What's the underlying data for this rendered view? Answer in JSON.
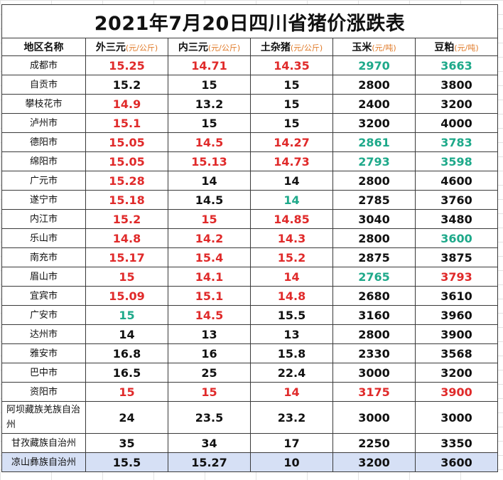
{
  "title": "2021年7月20日四川省猪价涨跌表",
  "colors": {
    "up": "#e02a2a",
    "down": "#1ea98a",
    "flat": "#111111",
    "unit": "#e07a28",
    "last_row_bg": "#d6e0f5"
  },
  "headers": [
    {
      "label": "地区名称",
      "unit": ""
    },
    {
      "label": "外三元",
      "unit": "(元/公斤)"
    },
    {
      "label": "内三元",
      "unit": "(元/公斤)"
    },
    {
      "label": "土杂猪",
      "unit": "(元/公斤)"
    },
    {
      "label": "玉米",
      "unit": "(元/吨)"
    },
    {
      "label": "豆粕",
      "unit": "(元/吨)"
    }
  ],
  "rows": [
    {
      "region": "成都市",
      "cells": [
        {
          "v": "15.25",
          "t": "up"
        },
        {
          "v": "14.71",
          "t": "up"
        },
        {
          "v": "14.35",
          "t": "up"
        },
        {
          "v": "2970",
          "t": "down"
        },
        {
          "v": "3663",
          "t": "down"
        }
      ]
    },
    {
      "region": "自贡市",
      "cells": [
        {
          "v": "15.2",
          "t": "flat"
        },
        {
          "v": "15",
          "t": "flat"
        },
        {
          "v": "15",
          "t": "flat"
        },
        {
          "v": "2800",
          "t": "flat"
        },
        {
          "v": "3800",
          "t": "flat"
        }
      ]
    },
    {
      "region": "攀枝花市",
      "cells": [
        {
          "v": "14.9",
          "t": "up"
        },
        {
          "v": "13.2",
          "t": "flat"
        },
        {
          "v": "15",
          "t": "flat"
        },
        {
          "v": "2400",
          "t": "flat"
        },
        {
          "v": "3200",
          "t": "flat"
        }
      ]
    },
    {
      "region": "泸州市",
      "cells": [
        {
          "v": "15.1",
          "t": "up"
        },
        {
          "v": "15",
          "t": "flat"
        },
        {
          "v": "15",
          "t": "flat"
        },
        {
          "v": "3200",
          "t": "flat"
        },
        {
          "v": "4000",
          "t": "flat"
        }
      ]
    },
    {
      "region": "德阳市",
      "cells": [
        {
          "v": "15.05",
          "t": "up"
        },
        {
          "v": "14.5",
          "t": "up"
        },
        {
          "v": "14.27",
          "t": "up"
        },
        {
          "v": "2861",
          "t": "down"
        },
        {
          "v": "3783",
          "t": "down"
        }
      ]
    },
    {
      "region": "绵阳市",
      "cells": [
        {
          "v": "15.05",
          "t": "up"
        },
        {
          "v": "15.13",
          "t": "up"
        },
        {
          "v": "14.73",
          "t": "up"
        },
        {
          "v": "2793",
          "t": "down"
        },
        {
          "v": "3598",
          "t": "down"
        }
      ]
    },
    {
      "region": "广元市",
      "cells": [
        {
          "v": "15.28",
          "t": "up"
        },
        {
          "v": "14",
          "t": "flat"
        },
        {
          "v": "14",
          "t": "flat"
        },
        {
          "v": "2800",
          "t": "flat"
        },
        {
          "v": "4600",
          "t": "flat"
        }
      ]
    },
    {
      "region": "遂宁市",
      "cells": [
        {
          "v": "15.18",
          "t": "up"
        },
        {
          "v": "14.5",
          "t": "flat"
        },
        {
          "v": "14",
          "t": "down"
        },
        {
          "v": "2785",
          "t": "flat"
        },
        {
          "v": "3760",
          "t": "flat"
        }
      ]
    },
    {
      "region": "内江市",
      "cells": [
        {
          "v": "15.2",
          "t": "up"
        },
        {
          "v": "15",
          "t": "up"
        },
        {
          "v": "14.85",
          "t": "up"
        },
        {
          "v": "3040",
          "t": "flat"
        },
        {
          "v": "3480",
          "t": "flat"
        }
      ]
    },
    {
      "region": "乐山市",
      "cells": [
        {
          "v": "14.8",
          "t": "up"
        },
        {
          "v": "14.2",
          "t": "up"
        },
        {
          "v": "14.3",
          "t": "up"
        },
        {
          "v": "2800",
          "t": "flat"
        },
        {
          "v": "3600",
          "t": "down"
        }
      ]
    },
    {
      "region": "南充市",
      "cells": [
        {
          "v": "15.17",
          "t": "up"
        },
        {
          "v": "15.4",
          "t": "up"
        },
        {
          "v": "15.2",
          "t": "up"
        },
        {
          "v": "2875",
          "t": "flat"
        },
        {
          "v": "3875",
          "t": "flat"
        }
      ]
    },
    {
      "region": "眉山市",
      "cells": [
        {
          "v": "15",
          "t": "up"
        },
        {
          "v": "14.1",
          "t": "up"
        },
        {
          "v": "14",
          "t": "up"
        },
        {
          "v": "2765",
          "t": "down"
        },
        {
          "v": "3793",
          "t": "up"
        }
      ]
    },
    {
      "region": "宜宾市",
      "cells": [
        {
          "v": "15.09",
          "t": "up"
        },
        {
          "v": "15.1",
          "t": "up"
        },
        {
          "v": "14.8",
          "t": "up"
        },
        {
          "v": "2680",
          "t": "flat"
        },
        {
          "v": "3610",
          "t": "flat"
        }
      ]
    },
    {
      "region": "广安市",
      "cells": [
        {
          "v": "15",
          "t": "down"
        },
        {
          "v": "14.5",
          "t": "up"
        },
        {
          "v": "15.5",
          "t": "flat"
        },
        {
          "v": "3160",
          "t": "flat"
        },
        {
          "v": "3960",
          "t": "flat"
        }
      ]
    },
    {
      "region": "达州市",
      "cells": [
        {
          "v": "14",
          "t": "flat"
        },
        {
          "v": "13",
          "t": "flat"
        },
        {
          "v": "13",
          "t": "flat"
        },
        {
          "v": "2800",
          "t": "flat"
        },
        {
          "v": "3900",
          "t": "flat"
        }
      ]
    },
    {
      "region": "雅安市",
      "cells": [
        {
          "v": "16.8",
          "t": "flat"
        },
        {
          "v": "16",
          "t": "flat"
        },
        {
          "v": "15.8",
          "t": "flat"
        },
        {
          "v": "2330",
          "t": "flat"
        },
        {
          "v": "3568",
          "t": "flat"
        }
      ]
    },
    {
      "region": "巴中市",
      "cells": [
        {
          "v": "16.5",
          "t": "flat"
        },
        {
          "v": "25",
          "t": "flat"
        },
        {
          "v": "22.4",
          "t": "flat"
        },
        {
          "v": "3000",
          "t": "flat"
        },
        {
          "v": "3200",
          "t": "flat"
        }
      ]
    },
    {
      "region": "资阳市",
      "cells": [
        {
          "v": "15",
          "t": "up"
        },
        {
          "v": "15",
          "t": "up"
        },
        {
          "v": "14",
          "t": "up"
        },
        {
          "v": "3175",
          "t": "up"
        },
        {
          "v": "3900",
          "t": "up"
        }
      ]
    },
    {
      "region": "阿坝藏族羌族自治州",
      "cells": [
        {
          "v": "24",
          "t": "flat"
        },
        {
          "v": "23.5",
          "t": "flat"
        },
        {
          "v": "23.2",
          "t": "flat"
        },
        {
          "v": "3000",
          "t": "flat"
        },
        {
          "v": "3000",
          "t": "flat"
        }
      ]
    },
    {
      "region": "甘孜藏族自治州",
      "cells": [
        {
          "v": "35",
          "t": "flat"
        },
        {
          "v": "34",
          "t": "flat"
        },
        {
          "v": "17",
          "t": "flat"
        },
        {
          "v": "2250",
          "t": "flat"
        },
        {
          "v": "3350",
          "t": "flat"
        }
      ]
    },
    {
      "region": "凉山彝族自治州",
      "cells": [
        {
          "v": "15.5",
          "t": "flat"
        },
        {
          "v": "15.27",
          "t": "flat"
        },
        {
          "v": "10",
          "t": "flat"
        },
        {
          "v": "3200",
          "t": "flat"
        },
        {
          "v": "3600",
          "t": "flat"
        }
      ]
    }
  ]
}
